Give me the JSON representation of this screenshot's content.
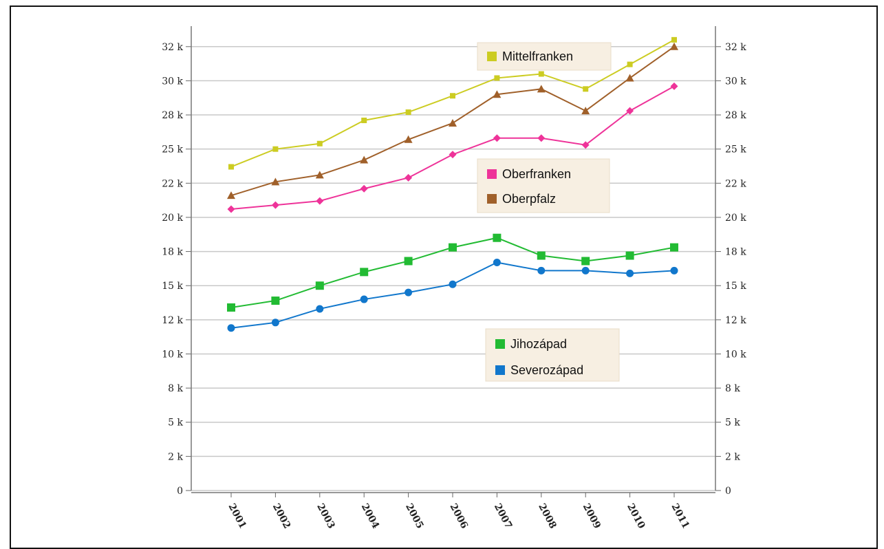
{
  "chart_data": {
    "type": "line",
    "title": "",
    "xlabel": "",
    "ylabel": "",
    "x": [
      "2001",
      "2002",
      "2003",
      "2004",
      "2005",
      "2006",
      "2007",
      "2008",
      "2009",
      "2010",
      "2011"
    ],
    "ylim": [
      0,
      34000
    ],
    "y_ticks": [
      {
        "value": 0,
        "label": "0"
      },
      {
        "value": 2500,
        "label": "2 k"
      },
      {
        "value": 5000,
        "label": "5 k"
      },
      {
        "value": 7500,
        "label": "8 k"
      },
      {
        "value": 10000,
        "label": "10 k"
      },
      {
        "value": 12500,
        "label": "12 k"
      },
      {
        "value": 15000,
        "label": "15 k"
      },
      {
        "value": 17500,
        "label": "18 k"
      },
      {
        "value": 20000,
        "label": "20 k"
      },
      {
        "value": 22500,
        "label": "22 k"
      },
      {
        "value": 25000,
        "label": "25 k"
      },
      {
        "value": 27500,
        "label": "28 k"
      },
      {
        "value": 30000,
        "label": "30 k"
      },
      {
        "value": 32500,
        "label": "32 k"
      }
    ],
    "grid": true,
    "series": [
      {
        "name": "Mittelfranken",
        "color": "#cccc22",
        "marker": "square-small",
        "values": [
          23700,
          25000,
          25400,
          27100,
          27700,
          28900,
          30200,
          30500,
          29400,
          31200,
          33000
        ]
      },
      {
        "name": "Oberpfalz",
        "color": "#a0602a",
        "marker": "triangle",
        "values": [
          21600,
          22600,
          23100,
          24200,
          25700,
          26900,
          29000,
          29400,
          27800,
          30200,
          32500
        ]
      },
      {
        "name": "Oberfranken",
        "color": "#ee3399",
        "marker": "diamond",
        "values": [
          20600,
          20900,
          21200,
          22100,
          22900,
          24600,
          25800,
          25800,
          25300,
          27800,
          29600
        ]
      },
      {
        "name": "Jihozápad",
        "color": "#22bb33",
        "marker": "square",
        "values": [
          13400,
          13900,
          15000,
          16000,
          16800,
          17800,
          18500,
          17200,
          16800,
          17200,
          17800
        ]
      },
      {
        "name": "Severozápad",
        "color": "#1177cc",
        "marker": "circle",
        "values": [
          11900,
          12300,
          13300,
          14000,
          14500,
          15100,
          16700,
          16100,
          16100,
          15900,
          16100
        ]
      }
    ],
    "legends": [
      {
        "placement": "top-right",
        "entries": [
          {
            "label": "Mittelfranken",
            "color": "#cccc22"
          }
        ]
      },
      {
        "placement": "center-right",
        "entries": [
          {
            "label": "Oberfranken",
            "color": "#ee3399"
          },
          {
            "label": "Oberpfalz",
            "color": "#a0602a"
          }
        ]
      },
      {
        "placement": "lower-right",
        "entries": [
          {
            "label": "Jihozápad",
            "color": "#22bb33"
          },
          {
            "label": "Severozápad",
            "color": "#1177cc"
          }
        ]
      }
    ]
  }
}
